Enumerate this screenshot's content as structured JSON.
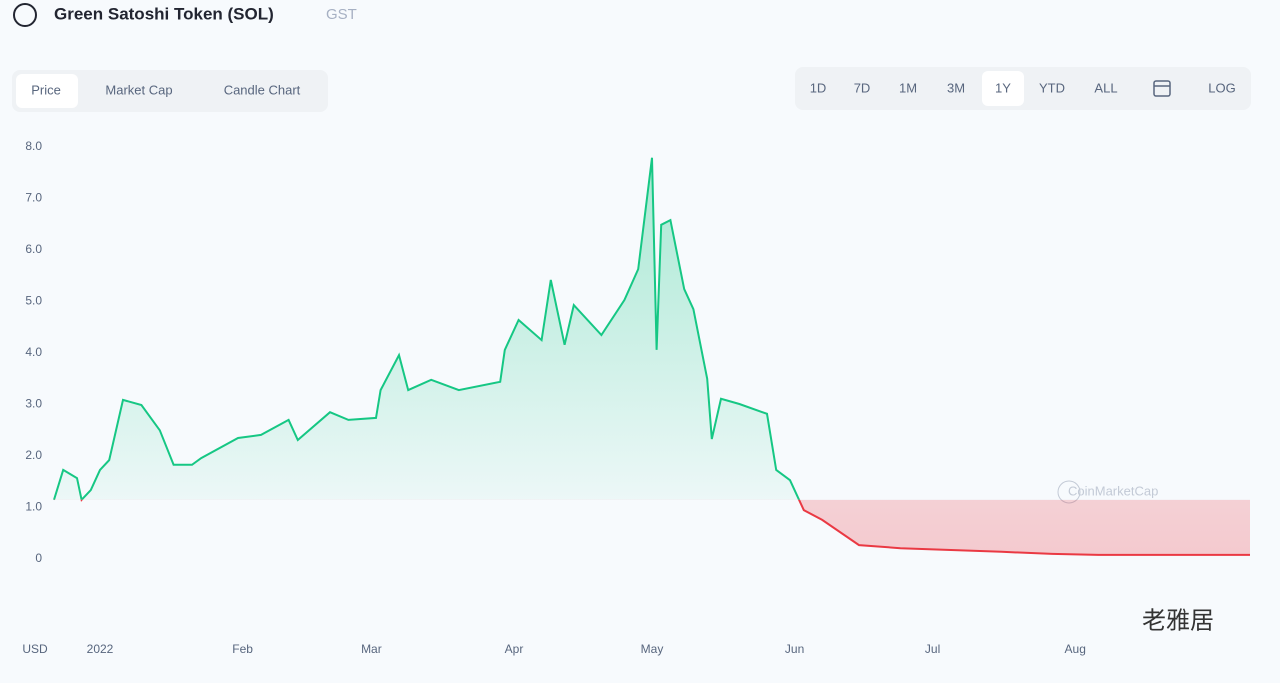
{
  "header": {
    "title": "Green Satoshi Token (SOL)",
    "symbol": "GST"
  },
  "tabs": [
    "Price",
    "Market Cap",
    "Candle Chart"
  ],
  "ranges": [
    "1D",
    "7D",
    "1M",
    "3M",
    "1Y",
    "YTD",
    "ALL"
  ],
  "log_button": "LOG",
  "watermarks": [
    "CoinMarketCap",
    "老雅居"
  ],
  "chart_data": {
    "type": "line",
    "x": [
      -10,
      -8,
      -5,
      -4,
      -2,
      0,
      2,
      5,
      9,
      13,
      16,
      20,
      22,
      30,
      35,
      41,
      43,
      50,
      54,
      60,
      61,
      65,
      67,
      72,
      78,
      87,
      88,
      91,
      96,
      98,
      101,
      103,
      109,
      114,
      117,
      120,
      121,
      122,
      124,
      127,
      129,
      132,
      133,
      135,
      139,
      145,
      147,
      150,
      153,
      157,
      165,
      174,
      196,
      207,
      217,
      250
    ],
    "series": [
      {
        "color": "#16c784",
        "down_color": "#ea3943",
        "values": [
          1.15,
          1.73,
          1.57,
          1.15,
          1.34,
          1.73,
          1.92,
          3.09,
          2.99,
          2.5,
          1.83,
          1.83,
          1.96,
          2.35,
          2.41,
          2.7,
          2.31,
          2.85,
          2.7,
          2.74,
          3.28,
          3.96,
          3.28,
          3.48,
          3.28,
          3.44,
          4.06,
          4.64,
          4.25,
          5.42,
          4.16,
          4.93,
          4.35,
          5.03,
          5.63,
          7.79,
          4.06,
          6.49,
          6.58,
          5.24,
          4.85,
          3.5,
          2.33,
          3.11,
          3.01,
          2.82,
          1.73,
          1.53,
          0.95,
          0.76,
          0.27,
          0.21,
          0.14,
          0.1,
          0.08,
          0.08
        ]
      }
    ],
    "xlim": [
      -10,
      250
    ],
    "xticks": [
      {
        "value": 0,
        "label": "2022"
      },
      {
        "value": 31,
        "label": "Feb"
      },
      {
        "value": 59,
        "label": "Mar"
      },
      {
        "value": 90,
        "label": "Apr"
      },
      {
        "value": 120,
        "label": "May"
      },
      {
        "value": 151,
        "label": "Jun"
      },
      {
        "value": 181,
        "label": "Jul"
      },
      {
        "value": 212,
        "label": "Aug"
      }
    ],
    "ylim": [
      0,
      8
    ],
    "yticks": [
      0,
      {
        "value": 1,
        "label": "1.0"
      },
      {
        "value": 2,
        "label": "2.0"
      },
      {
        "value": 3,
        "label": "3.0"
      },
      {
        "value": 4,
        "label": "4.0"
      },
      {
        "value": 5,
        "label": "5.0"
      },
      {
        "value": 6,
        "label": "6.0"
      },
      {
        "value": 7,
        "label": "7.0"
      },
      {
        "value": 8,
        "label": "8.0"
      }
    ],
    "y_unit": "USD"
  }
}
